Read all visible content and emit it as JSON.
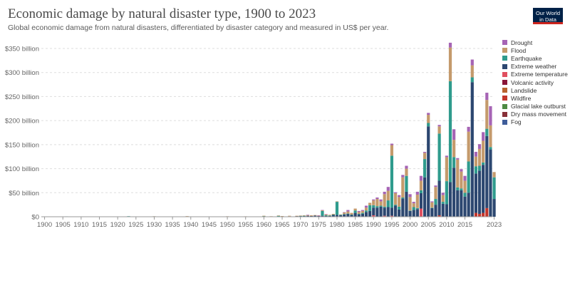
{
  "header": {
    "title": "Economic damage by natural disaster type, 1900 to 2023",
    "subtitle": "Global economic damage from natural disasters, differentiated by disaster category and measured in US$ per year.",
    "logo_line1": "Our World",
    "logo_line2": "in Data"
  },
  "chart_data": {
    "type": "bar",
    "stacked": true,
    "title": "Economic damage by natural disaster type, 1900 to 2023",
    "xlabel": "",
    "ylabel": "",
    "ylim": [
      0,
      350000000000
    ],
    "x_ticks": [
      "1900",
      "1905",
      "1910",
      "1915",
      "1920",
      "1925",
      "1930",
      "1935",
      "1940",
      "1945",
      "1950",
      "1955",
      "1960",
      "1965",
      "1970",
      "1975",
      "1980",
      "1985",
      "1990",
      "1995",
      "2000",
      "2005",
      "2010",
      "2015",
      "2023"
    ],
    "y_ticks": [
      {
        "value": 0,
        "label": "$0"
      },
      {
        "value": 50,
        "label": "$50 billion"
      },
      {
        "value": 100,
        "label": "$100 billion"
      },
      {
        "value": 150,
        "label": "$150 billion"
      },
      {
        "value": 200,
        "label": "$200 billion"
      },
      {
        "value": 250,
        "label": "$250 billion"
      },
      {
        "value": 300,
        "label": "$300 billion"
      },
      {
        "value": 350,
        "label": "$350 billion"
      }
    ],
    "grid": "horizontal-dashed",
    "legend_position": "right",
    "unit_note": "values in billions of US$",
    "series": [
      {
        "name": "Drought",
        "color": "#a664b5"
      },
      {
        "name": "Flood",
        "color": "#c49a6c"
      },
      {
        "name": "Earthquake",
        "color": "#2f9b8d"
      },
      {
        "name": "Extreme weather",
        "color": "#2c4770"
      },
      {
        "name": "Extreme temperature",
        "color": "#e04f5f"
      },
      {
        "name": "Volcanic activity",
        "color": "#8a1538"
      },
      {
        "name": "Landslide",
        "color": "#b8632f"
      },
      {
        "name": "Wildfire",
        "color": "#c2352b"
      },
      {
        "name": "Glacial lake outburst",
        "color": "#4e8a43"
      },
      {
        "name": "Dry mass movement",
        "color": "#883039"
      },
      {
        "name": "Fog",
        "color": "#3f5d9a"
      }
    ],
    "stack_order": [
      "Fog",
      "Extreme temperature",
      "Wildfire",
      "Extreme weather",
      "Earthquake",
      "Flood",
      "Drought"
    ],
    "years_data": [
      {
        "year": 1900,
        "storm": 0,
        "eq": 0,
        "flood": 0,
        "drought": 0,
        "temp": 0,
        "fire": 0,
        "fog": 0
      },
      {
        "year": 1906,
        "storm": 0,
        "eq": 0.8,
        "flood": 0,
        "drought": 0,
        "temp": 0,
        "fire": 0,
        "fog": 0
      },
      {
        "year": 1923,
        "storm": 0,
        "eq": 1.2,
        "flood": 0,
        "drought": 0,
        "temp": 0,
        "fire": 0,
        "fog": 0
      },
      {
        "year": 1930,
        "storm": 0.3,
        "eq": 0.5,
        "flood": 0.2,
        "drought": 0,
        "temp": 0,
        "fire": 0,
        "fog": 0
      },
      {
        "year": 1939,
        "storm": 0.3,
        "eq": 0.5,
        "flood": 0.5,
        "drought": 0,
        "temp": 0,
        "fire": 0,
        "fog": 0
      },
      {
        "year": 1950,
        "storm": 0.5,
        "eq": 0,
        "flood": 0.5,
        "drought": 0,
        "temp": 0,
        "fire": 0,
        "fog": 0
      },
      {
        "year": 1955,
        "storm": 0.6,
        "eq": 0,
        "flood": 0.3,
        "drought": 0,
        "temp": 0,
        "fire": 0,
        "fog": 0
      },
      {
        "year": 1960,
        "storm": 0.6,
        "eq": 1.0,
        "flood": 0.4,
        "drought": 0,
        "temp": 0,
        "fire": 0,
        "fog": 0
      },
      {
        "year": 1962,
        "storm": 0.6,
        "eq": 0,
        "flood": 0.5,
        "drought": 0,
        "temp": 0,
        "fire": 0,
        "fog": 0
      },
      {
        "year": 1964,
        "storm": 0.6,
        "eq": 1.5,
        "flood": 0.5,
        "drought": 0,
        "temp": 0,
        "fire": 0,
        "fog": 0
      },
      {
        "year": 1965,
        "storm": 1.0,
        "eq": 0,
        "flood": 0.5,
        "drought": 0,
        "temp": 0,
        "fire": 0,
        "fog": 0
      },
      {
        "year": 1967,
        "storm": 1.0,
        "eq": 0,
        "flood": 1.0,
        "drought": 0,
        "temp": 0,
        "fire": 0,
        "fog": 0
      },
      {
        "year": 1969,
        "storm": 1.5,
        "eq": 0,
        "flood": 0.5,
        "drought": 0,
        "temp": 0,
        "fire": 0,
        "fog": 0
      },
      {
        "year": 1970,
        "storm": 1.5,
        "eq": 0.5,
        "flood": 0.5,
        "drought": 0,
        "temp": 0,
        "fire": 0,
        "fog": 0
      },
      {
        "year": 1971,
        "storm": 1.5,
        "eq": 0.5,
        "flood": 1.0,
        "drought": 0,
        "temp": 0,
        "fire": 0,
        "fog": 0
      },
      {
        "year": 1972,
        "storm": 2.0,
        "eq": 0,
        "flood": 1.5,
        "drought": 0.5,
        "temp": 0,
        "fire": 0,
        "fog": 0
      },
      {
        "year": 1973,
        "storm": 1.5,
        "eq": 0,
        "flood": 1.5,
        "drought": 0,
        "temp": 0,
        "fire": 0,
        "fog": 0
      },
      {
        "year": 1974,
        "storm": 2.5,
        "eq": 0,
        "flood": 1.0,
        "drought": 0,
        "temp": 0,
        "fire": 0,
        "fog": 0
      },
      {
        "year": 1975,
        "storm": 1.5,
        "eq": 0,
        "flood": 1.0,
        "drought": 0.5,
        "temp": 0,
        "fire": 0,
        "fog": 0
      },
      {
        "year": 1976,
        "storm": 2.0,
        "eq": 10,
        "flood": 1.5,
        "drought": 0.5,
        "temp": 0,
        "fire": 0,
        "fog": 0
      },
      {
        "year": 1977,
        "storm": 1.5,
        "eq": 1.5,
        "flood": 2.0,
        "drought": 0.5,
        "temp": 0,
        "fire": 0,
        "fog": 0
      },
      {
        "year": 1978,
        "storm": 2.0,
        "eq": 0.5,
        "flood": 1.5,
        "drought": 0,
        "temp": 0,
        "fire": 0,
        "fog": 0
      },
      {
        "year": 1979,
        "storm": 4.0,
        "eq": 0.5,
        "flood": 1.5,
        "drought": 0,
        "temp": 0,
        "fire": 0,
        "fog": 0
      },
      {
        "year": 1980,
        "storm": 4.0,
        "eq": 27,
        "flood": 1.0,
        "drought": 0,
        "temp": 0,
        "fire": 0,
        "fog": 0
      },
      {
        "year": 1981,
        "storm": 3.0,
        "eq": 1.0,
        "flood": 1.0,
        "drought": 0,
        "temp": 0,
        "fire": 0,
        "fog": 0
      },
      {
        "year": 1982,
        "storm": 5.0,
        "eq": 0.5,
        "flood": 3.5,
        "drought": 0.5,
        "temp": 0,
        "fire": 0,
        "fog": 0
      },
      {
        "year": 1983,
        "storm": 6.0,
        "eq": 0.5,
        "flood": 4.5,
        "drought": 3.0,
        "temp": 0,
        "fire": 0,
        "fog": 0
      },
      {
        "year": 1984,
        "storm": 4.0,
        "eq": 0.5,
        "flood": 3.5,
        "drought": 0,
        "temp": 0,
        "fire": 0,
        "fog": 0
      },
      {
        "year": 1985,
        "storm": 8.0,
        "eq": 5.0,
        "flood": 4.0,
        "drought": 0,
        "temp": 0,
        "fire": 0,
        "fog": 0
      },
      {
        "year": 1986,
        "storm": 5.0,
        "eq": 1.0,
        "flood": 4.0,
        "drought": 2.0,
        "temp": 0,
        "fire": 0,
        "fog": 0
      },
      {
        "year": 1987,
        "storm": 6.0,
        "eq": 2.0,
        "flood": 4.0,
        "drought": 2.0,
        "temp": 0,
        "fire": 0,
        "fog": 0
      },
      {
        "year": 1988,
        "storm": 10.0,
        "eq": 3.0,
        "flood": 6.0,
        "drought": 4.0,
        "temp": 0,
        "fire": 0,
        "fog": 0
      },
      {
        "year": 1989,
        "storm": 12.0,
        "eq": 12.0,
        "flood": 5.0,
        "drought": 0,
        "temp": 0,
        "fire": 0,
        "fog": 0
      },
      {
        "year": 1990,
        "storm": 16.0,
        "eq": 5.0,
        "flood": 10.0,
        "drought": 2.0,
        "temp": 3.0,
        "fire": 0,
        "fog": 0
      },
      {
        "year": 1991,
        "storm": 19.0,
        "eq": 3.0,
        "flood": 15.0,
        "drought": 3.0,
        "temp": 0,
        "fire": 0,
        "fog": 0
      },
      {
        "year": 1992,
        "storm": 21.0,
        "eq": 2.0,
        "flood": 9.0,
        "drought": 4.0,
        "temp": 0,
        "fire": 0,
        "fog": 0
      },
      {
        "year": 1993,
        "storm": 17.0,
        "eq": 2.0,
        "flood": 26.0,
        "drought": 5.0,
        "temp": 2.0,
        "fire": 0,
        "fog": 0
      },
      {
        "year": 1994,
        "storm": 20.0,
        "eq": 14.0,
        "flood": 20.0,
        "drought": 8.0,
        "temp": 0,
        "fire": 0,
        "fog": 0
      },
      {
        "year": 1995,
        "storm": 17.0,
        "eq": 108.0,
        "flood": 22.0,
        "drought": 3.0,
        "temp": 2.0,
        "fire": 0,
        "fog": 0
      },
      {
        "year": 1996,
        "storm": 23.0,
        "eq": 2.0,
        "flood": 24.0,
        "drought": 2.0,
        "temp": 0,
        "fire": 0,
        "fog": 0
      },
      {
        "year": 1997,
        "storm": 15.0,
        "eq": 6.0,
        "flood": 20.0,
        "drought": 4.0,
        "temp": 0,
        "fire": 0,
        "fog": 0
      },
      {
        "year": 1998,
        "storm": 38.0,
        "eq": 2.0,
        "flood": 42.0,
        "drought": 5.0,
        "temp": 0,
        "fire": 0,
        "fog": 0
      },
      {
        "year": 1999,
        "storm": 52.0,
        "eq": 33.0,
        "flood": 15.0,
        "drought": 6.0,
        "temp": 0,
        "fire": 0,
        "fog": 0
      },
      {
        "year": 2000,
        "storm": 12.0,
        "eq": 1.0,
        "flood": 28.0,
        "drought": 6.0,
        "temp": 0,
        "fire": 0,
        "fog": 0
      },
      {
        "year": 2001,
        "storm": 14.0,
        "eq": 6.0,
        "flood": 8.0,
        "drought": 3.0,
        "temp": 0,
        "fire": 0,
        "fog": 0
      },
      {
        "year": 2002,
        "storm": 16.0,
        "eq": 2.0,
        "flood": 28.0,
        "drought": 6.0,
        "temp": 0,
        "fire": 0,
        "fog": 0
      },
      {
        "year": 2003,
        "storm": 32.0,
        "eq": 6.0,
        "flood": 20.0,
        "drought": 10.0,
        "temp": 17.0,
        "fire": 0,
        "fog": 0
      },
      {
        "year": 2004,
        "storm": 82.0,
        "eq": 38.0,
        "flood": 13.0,
        "drought": 2.0,
        "temp": 0,
        "fire": 0,
        "fog": 0
      },
      {
        "year": 2005,
        "storm": 188.0,
        "eq": 7.0,
        "flood": 17.0,
        "drought": 4.0,
        "temp": 0,
        "fire": 0,
        "fog": 0
      },
      {
        "year": 2006,
        "storm": 18.0,
        "eq": 1.0,
        "flood": 11.0,
        "drought": 2.0,
        "temp": 0,
        "fire": 0,
        "fog": 0
      },
      {
        "year": 2007,
        "storm": 25.0,
        "eq": 12.0,
        "flood": 25.0,
        "drought": 3.0,
        "temp": 0,
        "fire": 0,
        "fog": 0
      },
      {
        "year": 2008,
        "storm": 72.0,
        "eq": 98.0,
        "flood": 15.0,
        "drought": 3.0,
        "temp": 0,
        "fire": 3.0,
        "fog": 0
      },
      {
        "year": 2009,
        "storm": 27.0,
        "eq": 4.0,
        "flood": 14.0,
        "drought": 5.0,
        "temp": 0,
        "fire": 0,
        "fog": 0
      },
      {
        "year": 2010,
        "storm": 26.0,
        "eq": 48.0,
        "flood": 50.0,
        "drought": 3.0,
        "temp": 0,
        "fire": 0,
        "fog": 0
      },
      {
        "year": 2011,
        "storm": 72.0,
        "eq": 210.0,
        "flood": 70.0,
        "drought": 10.0,
        "temp": 0,
        "fire": 0,
        "fog": 0
      },
      {
        "year": 2012,
        "storm": 102.0,
        "eq": 22.0,
        "flood": 36.0,
        "drought": 22.0,
        "temp": 0,
        "fire": 0,
        "fog": 0
      },
      {
        "year": 2013,
        "storm": 55.0,
        "eq": 6.0,
        "flood": 58.0,
        "drought": 3.0,
        "temp": 0,
        "fire": 0,
        "fog": 0
      },
      {
        "year": 2014,
        "storm": 55.0,
        "eq": 4.0,
        "flood": 35.0,
        "drought": 5.0,
        "temp": 0,
        "fire": 0,
        "fog": 0
      },
      {
        "year": 2015,
        "storm": 42.0,
        "eq": 8.0,
        "flood": 25.0,
        "drought": 10.0,
        "temp": 0,
        "fire": 0,
        "fog": 0
      },
      {
        "year": 2016,
        "storm": 50.0,
        "eq": 65.0,
        "flood": 62.0,
        "drought": 10.0,
        "temp": 0,
        "fire": 0,
        "fog": 0
      },
      {
        "year": 2017,
        "storm": 280.0,
        "eq": 10.0,
        "flood": 25.0,
        "drought": 12.0,
        "temp": 0,
        "fire": 0,
        "fog": 0
      },
      {
        "year": 2018,
        "storm": 82.0,
        "eq": 15.0,
        "flood": 20.0,
        "drought": 10.0,
        "temp": 0,
        "fire": 8.0,
        "fog": 0
      },
      {
        "year": 2019,
        "storm": 90.0,
        "eq": 10.0,
        "flood": 35.0,
        "drought": 10.0,
        "temp": 0,
        "fire": 6.0,
        "fog": 0
      },
      {
        "year": 2020,
        "storm": 100.0,
        "eq": 5.0,
        "flood": 45.0,
        "drought": 18.0,
        "temp": 0,
        "fire": 8.0,
        "fog": 0
      },
      {
        "year": 2021,
        "storm": 150.0,
        "eq": 15.0,
        "flood": 60.0,
        "drought": 15.0,
        "temp": 0,
        "fire": 18.0,
        "fog": 0
      },
      {
        "year": 2022,
        "storm": 140.0,
        "eq": 5.0,
        "flood": 45.0,
        "drought": 40.0,
        "temp": 0,
        "fire": 0,
        "fog": 0
      },
      {
        "year": 2023,
        "storm": 37.0,
        "eq": 45.0,
        "flood": 11.0,
        "drought": 0,
        "temp": 0,
        "fire": 0,
        "fog": 0
      }
    ]
  }
}
